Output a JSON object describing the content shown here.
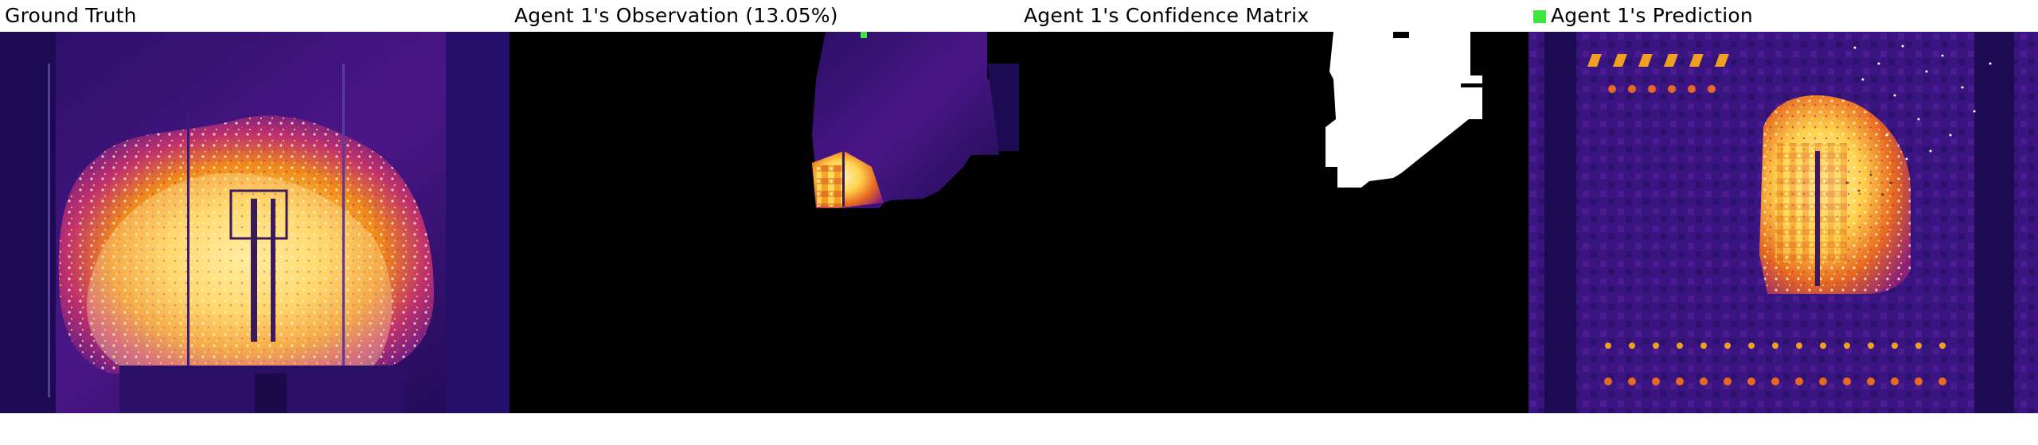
{
  "panels": [
    {
      "title": "Ground Truth"
    },
    {
      "title": "Agent 1's Observation (13.05%)"
    },
    {
      "title": "Agent 1's Confidence Matrix"
    },
    {
      "title": "Agent 1's Prediction"
    }
  ],
  "colors": {
    "background": "#ffffff",
    "mask_black": "#000000",
    "confidence_white": "#ffffff",
    "agent_marker": "#3be83b",
    "dark_purple": "#1a0a4a",
    "purple": "#5a1a8a",
    "magenta": "#b0307a",
    "orange": "#f08a1a",
    "yellow": "#ffe060",
    "pale": "#f2e6c8"
  },
  "icons": {
    "agent_marker": "green-square-icon"
  }
}
